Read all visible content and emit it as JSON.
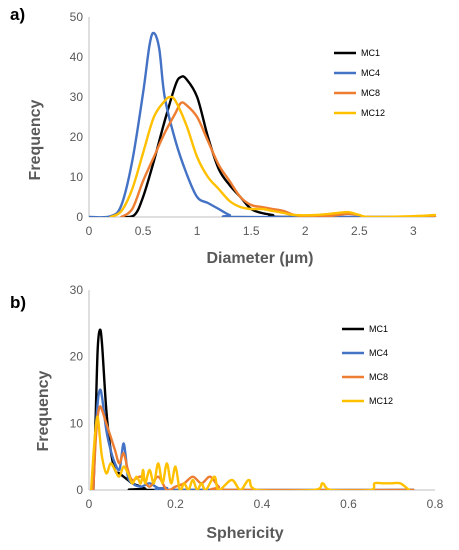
{
  "chart_data": [
    {
      "type": "line",
      "panel_label": "a)",
      "xlabel": "Diameter (µm)",
      "ylabel": "Frequency",
      "xlim": [
        0,
        3.2
      ],
      "ylim": [
        0,
        50
      ],
      "x_ticks": [
        0,
        0.5,
        1,
        1.5,
        2,
        2.5,
        3
      ],
      "y_ticks": [
        0,
        10,
        20,
        30,
        40,
        50
      ],
      "legend_position": "top-right",
      "grid": false,
      "series": [
        {
          "name": "MC1",
          "color": "#000000",
          "points": [
            [
              0.3,
              0
            ],
            [
              0.42,
              0.5
            ],
            [
              0.5,
              5
            ],
            [
              0.6,
              14
            ],
            [
              0.7,
              24
            ],
            [
              0.8,
              33
            ],
            [
              0.85,
              35
            ],
            [
              0.9,
              34.5
            ],
            [
              1.0,
              30
            ],
            [
              1.1,
              20
            ],
            [
              1.2,
              12
            ],
            [
              1.3,
              8
            ],
            [
              1.4,
              5
            ],
            [
              1.5,
              2
            ],
            [
              1.6,
              1
            ],
            [
              1.7,
              0.5
            ],
            [
              1.8,
              0
            ],
            [
              3.2,
              0
            ]
          ]
        },
        {
          "name": "MC4",
          "color": "#4472C4",
          "points": [
            [
              0,
              0
            ],
            [
              0.2,
              0.2
            ],
            [
              0.3,
              3
            ],
            [
              0.4,
              14
            ],
            [
              0.5,
              31
            ],
            [
              0.56,
              43
            ],
            [
              0.6,
              46
            ],
            [
              0.65,
              42
            ],
            [
              0.7,
              30
            ],
            [
              0.8,
              19
            ],
            [
              0.9,
              11
            ],
            [
              1.0,
              5
            ],
            [
              1.1,
              3.5
            ],
            [
              1.2,
              2
            ],
            [
              1.3,
              0.5
            ],
            [
              1.4,
              0
            ],
            [
              3.2,
              0
            ]
          ]
        },
        {
          "name": "MC8",
          "color": "#ED7D31",
          "points": [
            [
              0.3,
              0
            ],
            [
              0.4,
              2
            ],
            [
              0.5,
              9
            ],
            [
              0.6,
              15
            ],
            [
              0.7,
              21
            ],
            [
              0.8,
              26
            ],
            [
              0.85,
              28.5
            ],
            [
              0.9,
              28
            ],
            [
              1.0,
              25
            ],
            [
              1.1,
              19
            ],
            [
              1.2,
              13
            ],
            [
              1.3,
              9
            ],
            [
              1.4,
              5
            ],
            [
              1.5,
              3
            ],
            [
              1.6,
              2.5
            ],
            [
              1.7,
              2
            ],
            [
              1.8,
              1.5
            ],
            [
              1.9,
              0.5
            ],
            [
              2.0,
              0.2
            ],
            [
              2.2,
              0.2
            ],
            [
              2.3,
              0.5
            ],
            [
              2.4,
              0.8
            ],
            [
              2.5,
              0.5
            ],
            [
              2.6,
              0
            ],
            [
              3.2,
              0
            ]
          ]
        },
        {
          "name": "MC12",
          "color": "#FFC000",
          "points": [
            [
              0.2,
              0
            ],
            [
              0.3,
              1.5
            ],
            [
              0.4,
              7
            ],
            [
              0.5,
              16
            ],
            [
              0.6,
              25
            ],
            [
              0.7,
              29
            ],
            [
              0.75,
              30
            ],
            [
              0.8,
              29
            ],
            [
              0.9,
              23
            ],
            [
              1.0,
              15
            ],
            [
              1.1,
              10
            ],
            [
              1.2,
              7
            ],
            [
              1.3,
              4
            ],
            [
              1.4,
              2.5
            ],
            [
              1.5,
              2
            ],
            [
              1.6,
              2
            ],
            [
              1.7,
              1.5
            ],
            [
              1.8,
              1
            ],
            [
              1.9,
              0.5
            ],
            [
              2.1,
              0.5
            ],
            [
              2.3,
              1
            ],
            [
              2.4,
              1.2
            ],
            [
              2.5,
              0.5
            ],
            [
              2.6,
              0
            ],
            [
              3.0,
              0.2
            ],
            [
              3.2,
              0.5
            ]
          ]
        }
      ]
    },
    {
      "type": "line",
      "panel_label": "b)",
      "xlabel": "Sphericity",
      "ylabel": "Frequency",
      "xlim": [
        0,
        0.8
      ],
      "ylim": [
        0,
        30
      ],
      "x_ticks": [
        0,
        0.2,
        0.4,
        0.6,
        0.8
      ],
      "y_ticks": [
        0,
        10,
        20,
        30
      ],
      "legend_position": "top-right",
      "grid": false,
      "series": [
        {
          "name": "MC1",
          "color": "#000000",
          "points": [
            [
              0.01,
              0
            ],
            [
              0.015,
              10
            ],
            [
              0.02,
              21
            ],
            [
              0.025,
              24
            ],
            [
              0.03,
              22
            ],
            [
              0.04,
              12
            ],
            [
              0.05,
              6
            ],
            [
              0.06,
              3
            ],
            [
              0.07,
              2.5
            ],
            [
              0.08,
              2
            ],
            [
              0.09,
              1.5
            ],
            [
              0.1,
              1
            ],
            [
              0.12,
              0.5
            ],
            [
              0.13,
              0.2
            ],
            [
              0.14,
              0
            ],
            [
              0.75,
              0
            ]
          ]
        },
        {
          "name": "MC4",
          "color": "#4472C4",
          "points": [
            [
              0.01,
              0
            ],
            [
              0.015,
              8
            ],
            [
              0.02,
              13
            ],
            [
              0.025,
              15
            ],
            [
              0.03,
              14
            ],
            [
              0.04,
              9
            ],
            [
              0.05,
              6
            ],
            [
              0.06,
              4
            ],
            [
              0.07,
              3
            ],
            [
              0.075,
              5
            ],
            [
              0.08,
              7
            ],
            [
              0.085,
              5
            ],
            [
              0.09,
              2
            ],
            [
              0.1,
              1
            ],
            [
              0.12,
              0.5
            ],
            [
              0.14,
              1
            ],
            [
              0.16,
              0.3
            ],
            [
              0.18,
              0.3
            ],
            [
              0.2,
              0
            ],
            [
              0.75,
              0
            ]
          ]
        },
        {
          "name": "MC8",
          "color": "#ED7D31",
          "points": [
            [
              0.01,
              0
            ],
            [
              0.015,
              7
            ],
            [
              0.02,
              11
            ],
            [
              0.025,
              12.5
            ],
            [
              0.03,
              12
            ],
            [
              0.04,
              10
            ],
            [
              0.05,
              8
            ],
            [
              0.06,
              6
            ],
            [
              0.07,
              4
            ],
            [
              0.08,
              5.5
            ],
            [
              0.09,
              3
            ],
            [
              0.1,
              1.5
            ],
            [
              0.12,
              2
            ],
            [
              0.14,
              0.5
            ],
            [
              0.16,
              2
            ],
            [
              0.18,
              0
            ],
            [
              0.2,
              0.5
            ],
            [
              0.22,
              1
            ],
            [
              0.24,
              2
            ],
            [
              0.26,
              1
            ],
            [
              0.28,
              2
            ],
            [
              0.3,
              0.5
            ],
            [
              0.32,
              0
            ],
            [
              0.75,
              0
            ]
          ]
        },
        {
          "name": "MC12",
          "color": "#FFC000",
          "points": [
            [
              0.005,
              0
            ],
            [
              0.01,
              5
            ],
            [
              0.015,
              9
            ],
            [
              0.02,
              11
            ],
            [
              0.025,
              8
            ],
            [
              0.03,
              5
            ],
            [
              0.04,
              2.5
            ],
            [
              0.05,
              4
            ],
            [
              0.06,
              3
            ],
            [
              0.07,
              2
            ],
            [
              0.08,
              3.5
            ],
            [
              0.09,
              2.5
            ],
            [
              0.1,
              1
            ],
            [
              0.11,
              2
            ],
            [
              0.12,
              1
            ],
            [
              0.125,
              3
            ],
            [
              0.13,
              1
            ],
            [
              0.14,
              3
            ],
            [
              0.15,
              1
            ],
            [
              0.16,
              4
            ],
            [
              0.17,
              1
            ],
            [
              0.18,
              4
            ],
            [
              0.19,
              1
            ],
            [
              0.2,
              3.5
            ],
            [
              0.21,
              0
            ],
            [
              0.22,
              1
            ],
            [
              0.23,
              0
            ],
            [
              0.24,
              1.5
            ],
            [
              0.25,
              0
            ],
            [
              0.26,
              1
            ],
            [
              0.27,
              0
            ],
            [
              0.29,
              2
            ],
            [
              0.3,
              0
            ],
            [
              0.33,
              1.5
            ],
            [
              0.35,
              0
            ],
            [
              0.37,
              1.5
            ],
            [
              0.39,
              0
            ],
            [
              0.52,
              0
            ],
            [
              0.54,
              1
            ],
            [
              0.56,
              0
            ],
            [
              0.65,
              0
            ],
            [
              0.66,
              1
            ],
            [
              0.68,
              1
            ],
            [
              0.7,
              1
            ],
            [
              0.72,
              1
            ],
            [
              0.74,
              0
            ]
          ]
        }
      ]
    }
  ]
}
